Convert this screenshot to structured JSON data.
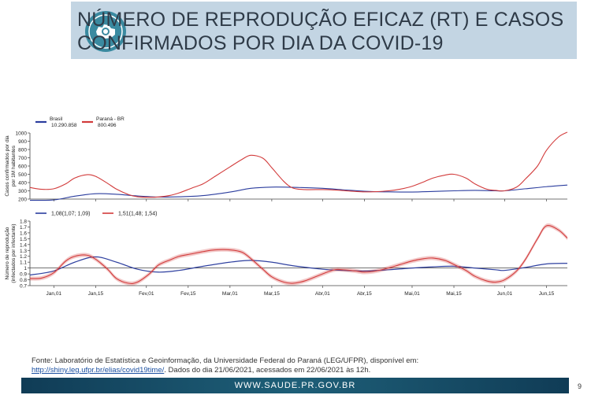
{
  "header": {
    "title_line1": "NÚMERO DE REPRODUÇÃO EFICAZ (RT) E CASOS",
    "title_line2": "CONFIRMADOS POR DIA DA COVID-19"
  },
  "logo": {
    "icon": "virus-icon"
  },
  "chart_data": [
    {
      "type": "line",
      "ylabel": "Casos confirmados por dia por 1M habitantes",
      "ylim": [
        200,
        1000
      ],
      "yticks": [
        200,
        300,
        400,
        500,
        600,
        700,
        800,
        900,
        1000
      ],
      "xlim": [
        -8,
        172
      ],
      "x_ticks": [
        {
          "x": 0,
          "label": "Jan,01"
        },
        {
          "x": 14,
          "label": "Jan,15"
        },
        {
          "x": 31,
          "label": "Fev,01"
        },
        {
          "x": 45,
          "label": "Fev,15"
        },
        {
          "x": 59,
          "label": "Mar,01"
        },
        {
          "x": 73,
          "label": "Mar,15"
        },
        {
          "x": 90,
          "label": "Abr,01"
        },
        {
          "x": 104,
          "label": "Abr,15"
        },
        {
          "x": 120,
          "label": "Mai,01"
        },
        {
          "x": 134,
          "label": "Mai,15"
        },
        {
          "x": 151,
          "label": "Jun,01"
        },
        {
          "x": 165,
          "label": "Jun,15"
        }
      ],
      "series": [
        {
          "name": "Brasil",
          "total": "10.290.858",
          "color": "#2b3d9e",
          "x": [
            -8,
            0,
            7,
            14,
            21,
            28,
            35,
            42,
            50,
            59,
            66,
            73,
            80,
            90,
            97,
            104,
            112,
            120,
            127,
            134,
            141,
            148,
            151,
            158,
            165,
            172
          ],
          "values": [
            185,
            190,
            235,
            265,
            258,
            238,
            225,
            228,
            242,
            285,
            330,
            345,
            342,
            330,
            312,
            295,
            287,
            285,
            292,
            300,
            305,
            300,
            300,
            325,
            350,
            370
          ]
        },
        {
          "name": "Paraná - BR",
          "total": "800.496",
          "color": "#d23b3b",
          "x": [
            -8,
            -4,
            0,
            4,
            7,
            11,
            14,
            18,
            21,
            25,
            28,
            32,
            35,
            39,
            42,
            46,
            50,
            54,
            59,
            63,
            66,
            70,
            73,
            77,
            80,
            84,
            90,
            94,
            97,
            101,
            104,
            108,
            112,
            116,
            120,
            124,
            127,
            131,
            134,
            138,
            141,
            145,
            148,
            151,
            155,
            158,
            162,
            165,
            169,
            172
          ],
          "values": [
            340,
            318,
            325,
            385,
            455,
            495,
            475,
            390,
            320,
            255,
            228,
            222,
            226,
            245,
            275,
            330,
            385,
            475,
            590,
            680,
            730,
            695,
            580,
            415,
            335,
            315,
            315,
            310,
            303,
            292,
            287,
            290,
            300,
            320,
            355,
            410,
            455,
            490,
            500,
            455,
            385,
            320,
            305,
            300,
            345,
            445,
            600,
            790,
            950,
            1010
          ]
        }
      ]
    },
    {
      "type": "line",
      "ylabel": "Número de reprodução (infectados por infectante)",
      "ylim": [
        0.7,
        1.8
      ],
      "yticks": [
        0.7,
        0.8,
        0.9,
        1,
        1.1,
        1.2,
        1.3,
        1.4,
        1.5,
        1.6,
        1.7,
        1.8
      ],
      "xlim": [
        -8,
        172
      ],
      "series": [
        {
          "name": "1,08(1,07; 1,09)",
          "color": "#2b3d9e",
          "band": 0.01,
          "x": [
            -8,
            0,
            7,
            14,
            21,
            28,
            35,
            42,
            50,
            59,
            66,
            73,
            80,
            90,
            97,
            104,
            112,
            120,
            127,
            134,
            141,
            148,
            151,
            158,
            165,
            172
          ],
          "values": [
            0.88,
            0.95,
            1.1,
            1.19,
            1.1,
            0.98,
            0.93,
            0.96,
            1.03,
            1.1,
            1.13,
            1.1,
            1.04,
            0.98,
            0.96,
            0.95,
            0.97,
            1.0,
            1.02,
            1.03,
            1.0,
            0.97,
            0.96,
            1.01,
            1.07,
            1.08
          ]
        },
        {
          "name": "1,51(1,48; 1,54)",
          "color": "#d23b3b",
          "band": 0.035,
          "x": [
            -8,
            -4,
            0,
            4,
            7,
            11,
            14,
            18,
            21,
            25,
            28,
            32,
            35,
            39,
            42,
            46,
            50,
            54,
            59,
            63,
            66,
            70,
            73,
            77,
            80,
            84,
            90,
            94,
            97,
            101,
            104,
            108,
            112,
            116,
            120,
            124,
            127,
            131,
            134,
            138,
            141,
            145,
            148,
            151,
            155,
            158,
            162,
            165,
            169,
            172
          ],
          "values": [
            0.82,
            0.83,
            0.92,
            1.12,
            1.2,
            1.22,
            1.15,
            0.98,
            0.82,
            0.74,
            0.76,
            0.9,
            1.05,
            1.14,
            1.2,
            1.24,
            1.28,
            1.31,
            1.31,
            1.27,
            1.16,
            0.98,
            0.85,
            0.76,
            0.74,
            0.78,
            0.9,
            0.97,
            0.97,
            0.95,
            0.93,
            0.95,
            1.0,
            1.06,
            1.12,
            1.16,
            1.17,
            1.13,
            1.06,
            0.96,
            0.86,
            0.78,
            0.76,
            0.8,
            0.95,
            1.15,
            1.5,
            1.72,
            1.65,
            1.51
          ]
        }
      ]
    }
  ],
  "source": {
    "line1": "Fonte: Laboratório de Estatística e Geoinformação, da Universidade Federal do Paraná (LEG/UFPR), disponível em:",
    "link": "http://shiny.leg.ufpr.br/elias/covid19time/",
    "line2": ". Dados do dia 21/06/2021, acessados em 22/06/2021 às 12h."
  },
  "footer": {
    "website": "WWW.SAUDE.PR.GOV.BR",
    "page": "9"
  }
}
